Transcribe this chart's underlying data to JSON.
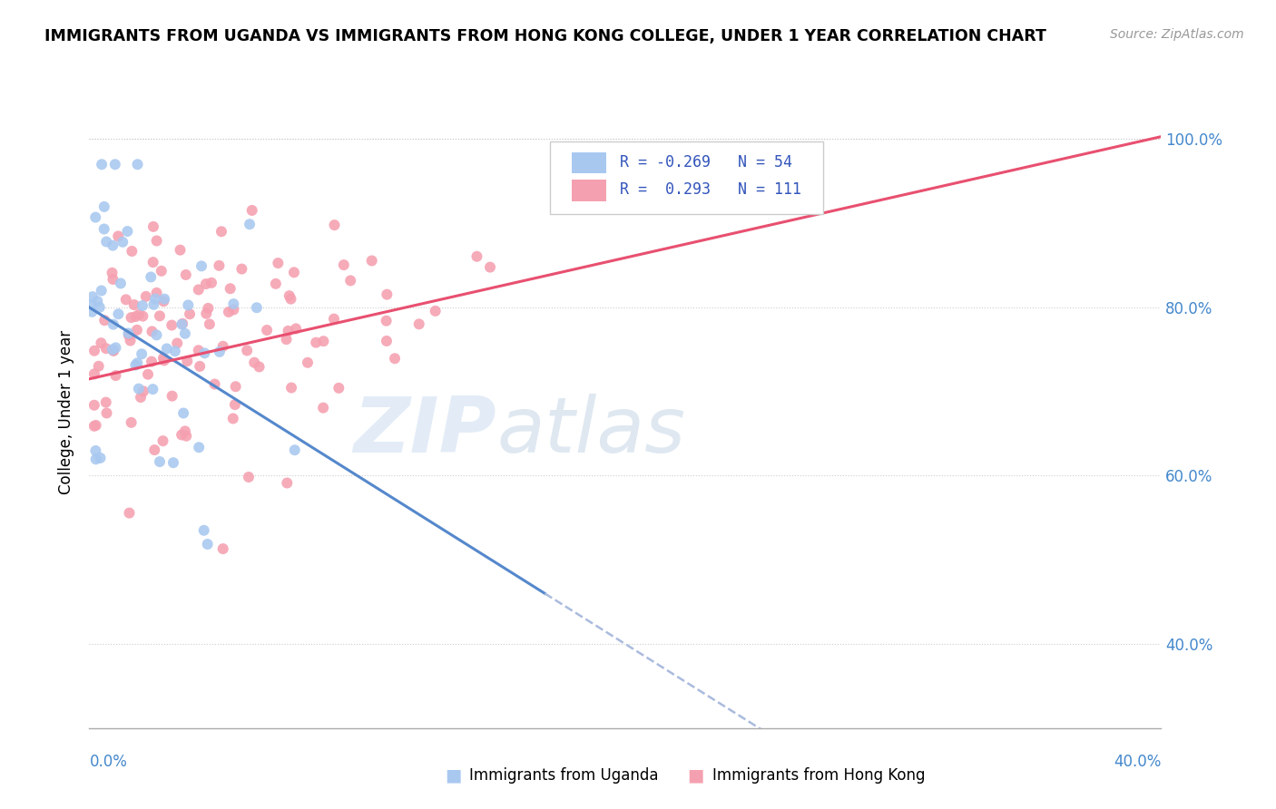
{
  "title": "IMMIGRANTS FROM UGANDA VS IMMIGRANTS FROM HONG KONG COLLEGE, UNDER 1 YEAR CORRELATION CHART",
  "source": "Source: ZipAtlas.com",
  "ylabel": "College, Under 1 year",
  "xmin": 0.0,
  "xmax": 0.4,
  "ymin": 0.3,
  "ymax": 1.05,
  "yticks": [
    0.4,
    0.6,
    0.8,
    1.0
  ],
  "ytick_labels": [
    "40.0%",
    "60.0%",
    "80.0%",
    "100.0%"
  ],
  "uganda_R": -0.269,
  "uganda_N": 54,
  "hk_R": 0.293,
  "hk_N": 111,
  "uganda_color": "#a8c8f0",
  "hk_color": "#f5a0b0",
  "uganda_line_color": "#5588cc",
  "hk_line_color": "#e85070",
  "uganda_dash_color": "#aabbdd",
  "legend_label_uganda": "Immigrants from Uganda",
  "legend_label_hk": "Immigrants from Hong Kong",
  "watermark_zip_color": "#c8ddf5",
  "watermark_atlas_color": "#a0b8d8"
}
